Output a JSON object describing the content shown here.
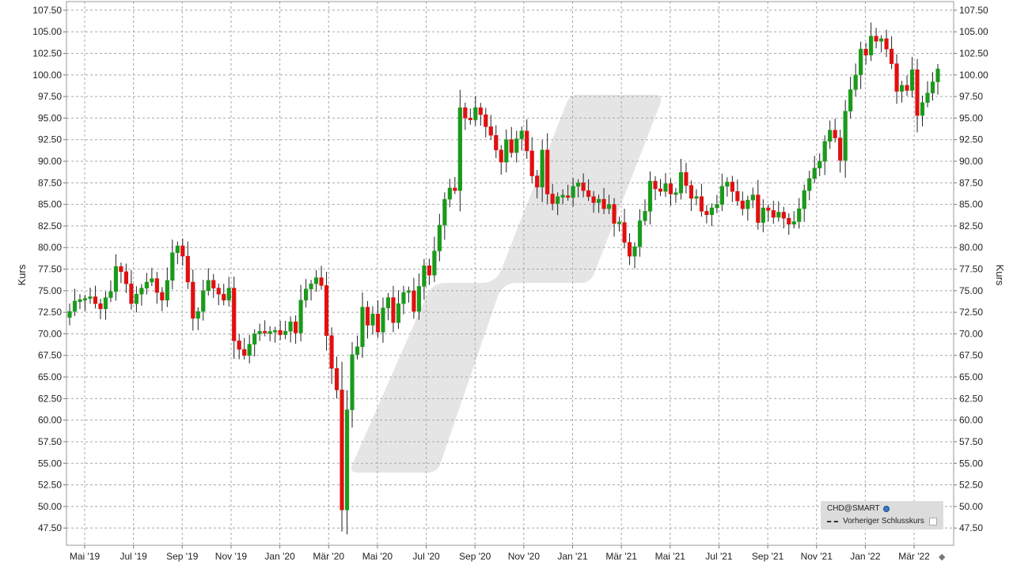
{
  "chart_data": {
    "type": "candlestick",
    "ylabel_left": "Kurs",
    "ylabel_right": "Kurs",
    "ylim": [
      45.5,
      108.5
    ],
    "yticks": [
      47.5,
      50.0,
      52.5,
      55.0,
      57.5,
      60.0,
      62.5,
      65.0,
      67.5,
      70.0,
      72.5,
      75.0,
      77.5,
      80.0,
      82.5,
      85.0,
      87.5,
      90.0,
      92.5,
      95.0,
      97.5,
      100.0,
      102.5,
      105.0,
      107.5
    ],
    "ytick_labels": [
      "47.50",
      "50.00",
      "52.50",
      "55.00",
      "57.50",
      "60.00",
      "62.50",
      "65.00",
      "67.50",
      "70.00",
      "72.50",
      "75.00",
      "77.50",
      "80.00",
      "82.50",
      "85.00",
      "87.50",
      "90.00",
      "92.50",
      "95.00",
      "97.50",
      "100.00",
      "102.50",
      "105.00",
      "107.50"
    ],
    "xtick_labels": [
      "Mai '19",
      "Jul '19",
      "Sep '19",
      "Nov '19",
      "Jan '20",
      "Mär '20",
      "Mai '20",
      "Jul '20",
      "Sep '20",
      "Nov '20",
      "Jan '21",
      "Mär '21",
      "Mai '21",
      "Jul '21",
      "Sep '21",
      "Nov '21",
      "Jan '22",
      "Mär '22"
    ],
    "grid": true,
    "legend_position": "bottom-right",
    "up_color": "#1a9a1a",
    "down_color": "#e01010",
    "closes": [
      72.6,
      73.8,
      73.9,
      74.1,
      74.3,
      73.5,
      72.9,
      74.2,
      74.9,
      77.8,
      77.2,
      75.8,
      73.5,
      74.6,
      75.3,
      76.0,
      76.4,
      74.8,
      73.9,
      76.2,
      79.4,
      80.2,
      79.0,
      76.0,
      71.8,
      72.6,
      75.0,
      76.2,
      75.3,
      74.6,
      73.9,
      75.3,
      69.2,
      68.2,
      67.5,
      68.8,
      70.0,
      70.3,
      70.1,
      70.2,
      70.4,
      69.9,
      70.3,
      71.4,
      70.1,
      73.9,
      75.2,
      75.8,
      76.5,
      75.6,
      69.8,
      66.0,
      63.5,
      49.6,
      61.2,
      67.6,
      68.5,
      73.1,
      71.0,
      72.3,
      70.2,
      73.0,
      74.2,
      71.3,
      73.5,
      74.8,
      75.0,
      72.6,
      75.5,
      77.9,
      76.8,
      79.6,
      82.6,
      85.6,
      86.9,
      86.6,
      96.2,
      95.0,
      94.8,
      96.2,
      95.4,
      94.0,
      93.0,
      91.3,
      89.9,
      92.5,
      91.0,
      92.6,
      93.5,
      91.2,
      88.3,
      87.0,
      91.3,
      86.2,
      85.1,
      85.9,
      86.0,
      85.8,
      87.1,
      87.5,
      86.6,
      85.9,
      85.2,
      85.6,
      84.5,
      85.0,
      82.8,
      82.9,
      80.6,
      79.0,
      80.1,
      83.1,
      84.2,
      87.7,
      86.8,
      86.5,
      87.4,
      86.2,
      86.3,
      88.7,
      87.2,
      85.7,
      85.9,
      84.2,
      83.8,
      84.6,
      85.0,
      87.1,
      87.6,
      86.5,
      85.4,
      84.5,
      85.5,
      86.1,
      82.9,
      84.6,
      84.3,
      83.5,
      84.1,
      83.4,
      82.7,
      83.0,
      84.5,
      86.6,
      88.0,
      89.2,
      90.0,
      92.3,
      93.6,
      92.7,
      90.1,
      95.8,
      98.3,
      100.0,
      103.0,
      102.3,
      104.5,
      103.9,
      104.2,
      103.0,
      101.3,
      98.1,
      98.8,
      98.2,
      100.6,
      95.3,
      96.8,
      97.9,
      99.2,
      100.7
    ],
    "source_label": "CHD@SMART",
    "prev_close_label": "Vorheriger Schlusskurs"
  }
}
